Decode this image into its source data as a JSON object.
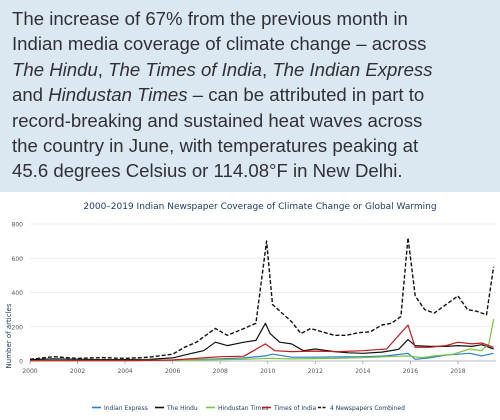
{
  "intro": {
    "l1": "The increase of 67% from the previous month in",
    "l2": "Indian media coverage of climate change – across",
    "l3_i1": "The Hindu",
    "l3_t1": ", ",
    "l3_i2": "The Times of India",
    "l3_t2": ", ",
    "l3_i3": "The Indian Express",
    "l4_t1": "and ",
    "l4_i1": "Hindustan Times",
    "l4_t2": " – can be attributed in part to",
    "l5": "record-breaking and sustained heat waves across",
    "l6": "the country in June, with temperatures peaking at",
    "l7": "45.6 degrees Celsius or 114.08°F in New Delhi."
  },
  "colors": {
    "background": "#dbe7f1",
    "text": "#2f3135",
    "indian_express": "#2a7fc4",
    "the_hindu": "#111111",
    "hindustan_times": "#7cc242",
    "times_of_india": "#c0191f",
    "combined": "#111111"
  },
  "chart_data": {
    "type": "line",
    "title": "2000–2019 Indian Newspaper Coverage of Climate Change or Global Warming",
    "xlabel": "",
    "ylabel": "Number of articles",
    "xlim": [
      2000,
      2019.6
    ],
    "ylim": [
      0,
      800
    ],
    "x_ticks": [
      2000,
      2002,
      2004,
      2006,
      2008,
      2010,
      2012,
      2014,
      2016,
      2018
    ],
    "y_ticks": [
      0,
      200,
      400,
      600,
      800
    ],
    "grid": "horizontal",
    "legend_position": "bottom",
    "series": [
      {
        "name": "Indian Express",
        "style": "solid",
        "points": [
          [
            2000,
            3
          ],
          [
            2002,
            4
          ],
          [
            2004,
            4
          ],
          [
            2006,
            6
          ],
          [
            2007,
            8
          ],
          [
            2008,
            12
          ],
          [
            2009,
            18
          ],
          [
            2009.9,
            30
          ],
          [
            2010.2,
            40
          ],
          [
            2011,
            22
          ],
          [
            2012,
            22
          ],
          [
            2013,
            24
          ],
          [
            2014,
            25
          ],
          [
            2015,
            30
          ],
          [
            2015.9,
            45
          ],
          [
            2016.2,
            10
          ],
          [
            2016.8,
            18
          ],
          [
            2017.5,
            35
          ],
          [
            2018,
            40
          ],
          [
            2018.5,
            45
          ],
          [
            2019,
            30
          ],
          [
            2019.5,
            45
          ]
        ]
      },
      {
        "name": "The Hindu",
        "style": "solid",
        "points": [
          [
            2000,
            8
          ],
          [
            2001,
            12
          ],
          [
            2002,
            10
          ],
          [
            2003,
            8
          ],
          [
            2004,
            8
          ],
          [
            2005,
            10
          ],
          [
            2006,
            18
          ],
          [
            2006.8,
            45
          ],
          [
            2007.3,
            60
          ],
          [
            2007.8,
            110
          ],
          [
            2008.3,
            90
          ],
          [
            2009,
            110
          ],
          [
            2009.5,
            120
          ],
          [
            2009.9,
            220
          ],
          [
            2010.1,
            160
          ],
          [
            2010.5,
            110
          ],
          [
            2011,
            100
          ],
          [
            2011.5,
            60
          ],
          [
            2012,
            70
          ],
          [
            2012.8,
            55
          ],
          [
            2013.4,
            48
          ],
          [
            2014,
            45
          ],
          [
            2014.8,
            52
          ],
          [
            2015.5,
            68
          ],
          [
            2015.9,
            125
          ],
          [
            2016.2,
            90
          ],
          [
            2016.8,
            85
          ],
          [
            2017.5,
            85
          ],
          [
            2018,
            90
          ],
          [
            2018.6,
            85
          ],
          [
            2019,
            95
          ],
          [
            2019.5,
            70
          ]
        ]
      },
      {
        "name": "Hindustan Times",
        "style": "solid",
        "points": [
          [
            2000,
            2
          ],
          [
            2002,
            3
          ],
          [
            2004,
            3
          ],
          [
            2006,
            5
          ],
          [
            2007,
            6
          ],
          [
            2008,
            8
          ],
          [
            2009,
            10
          ],
          [
            2010,
            15
          ],
          [
            2011,
            12
          ],
          [
            2012,
            14
          ],
          [
            2013,
            16
          ],
          [
            2014,
            20
          ],
          [
            2015,
            25
          ],
          [
            2015.9,
            30
          ],
          [
            2016.5,
            20
          ],
          [
            2017,
            30
          ],
          [
            2017.8,
            40
          ],
          [
            2018.5,
            70
          ],
          [
            2019,
            60
          ],
          [
            2019.3,
            100
          ],
          [
            2019.5,
            245
          ]
        ]
      },
      {
        "name": "Times of India",
        "style": "solid",
        "points": [
          [
            2000,
            1
          ],
          [
            2002,
            2
          ],
          [
            2004,
            2
          ],
          [
            2006,
            6
          ],
          [
            2007,
            15
          ],
          [
            2008,
            25
          ],
          [
            2009,
            28
          ],
          [
            2009.9,
            100
          ],
          [
            2010.3,
            60
          ],
          [
            2011,
            55
          ],
          [
            2012,
            58
          ],
          [
            2013,
            55
          ],
          [
            2014,
            60
          ],
          [
            2015,
            70
          ],
          [
            2015.9,
            210
          ],
          [
            2016.2,
            80
          ],
          [
            2016.8,
            80
          ],
          [
            2017.5,
            90
          ],
          [
            2018,
            110
          ],
          [
            2018.6,
            100
          ],
          [
            2019,
            105
          ],
          [
            2019.5,
            80
          ]
        ]
      },
      {
        "name": "4 Newspapers Combined",
        "style": "dashed",
        "points": [
          [
            2000,
            10
          ],
          [
            2001,
            25
          ],
          [
            2002,
            15
          ],
          [
            2003,
            20
          ],
          [
            2004,
            15
          ],
          [
            2005,
            22
          ],
          [
            2006,
            40
          ],
          [
            2006.5,
            80
          ],
          [
            2007,
            110
          ],
          [
            2007.4,
            150
          ],
          [
            2007.8,
            190
          ],
          [
            2008.3,
            150
          ],
          [
            2009,
            190
          ],
          [
            2009.5,
            220
          ],
          [
            2009.95,
            700
          ],
          [
            2010.2,
            330
          ],
          [
            2010.6,
            280
          ],
          [
            2011,
            230
          ],
          [
            2011.4,
            160
          ],
          [
            2011.8,
            190
          ],
          [
            2012.3,
            170
          ],
          [
            2012.8,
            150
          ],
          [
            2013.3,
            150
          ],
          [
            2013.8,
            165
          ],
          [
            2014.3,
            170
          ],
          [
            2014.8,
            210
          ],
          [
            2015.2,
            220
          ],
          [
            2015.6,
            260
          ],
          [
            2015.9,
            720
          ],
          [
            2016.2,
            380
          ],
          [
            2016.6,
            300
          ],
          [
            2017,
            280
          ],
          [
            2017.5,
            330
          ],
          [
            2018,
            380
          ],
          [
            2018.4,
            300
          ],
          [
            2018.8,
            290
          ],
          [
            2019.2,
            270
          ],
          [
            2019.5,
            550
          ]
        ]
      }
    ]
  }
}
